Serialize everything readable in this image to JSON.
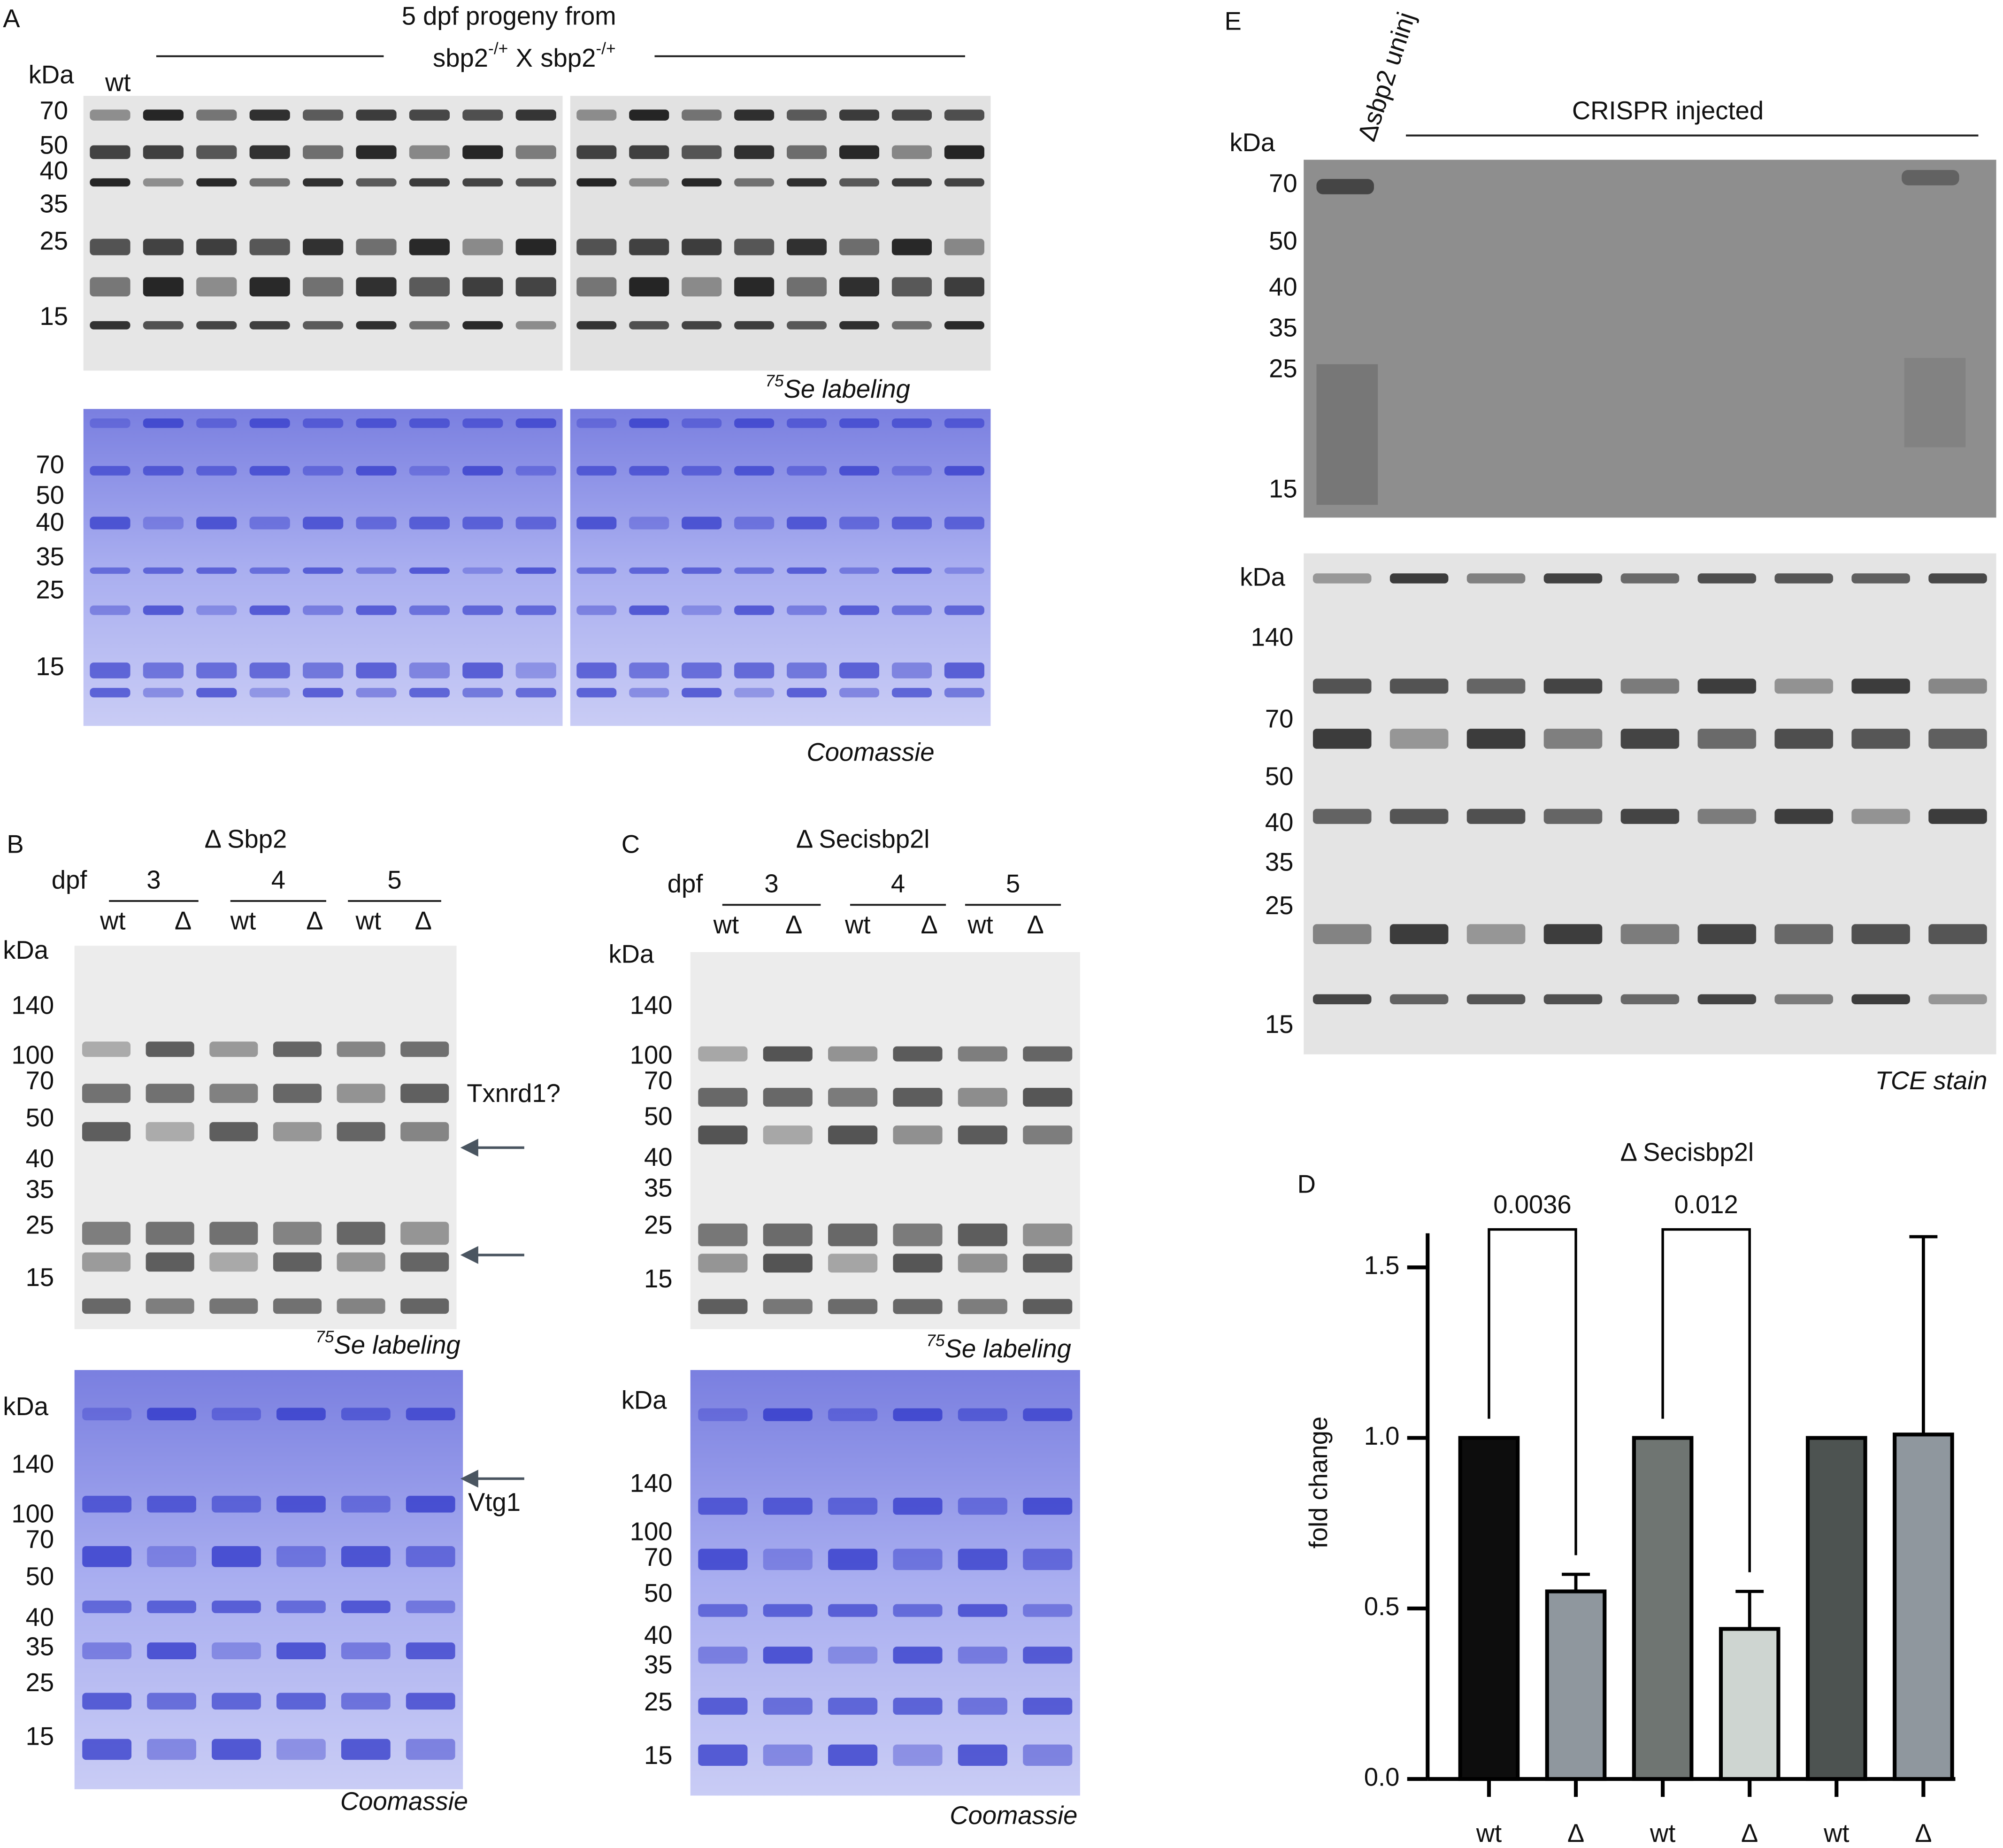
{
  "panel_a": {
    "letter": "A",
    "title": "5 dpf progeny from",
    "cross": [
      "sbp2",
      "-/+",
      "X",
      "sbp2",
      "-/+"
    ],
    "kda": "kDa",
    "lane": "wt",
    "markers_top": [
      "70",
      "50",
      "40",
      "35",
      "25",
      "15"
    ],
    "markers_bottom": [
      "70",
      "50",
      "40",
      "35",
      "25",
      "15"
    ],
    "label_top": {
      "isotope": "75",
      "text": "Se labeling"
    },
    "label_bottom": "Coomassie"
  },
  "panel_b": {
    "letter": "B",
    "title": "Δ Sbp2",
    "dpf": "dpf",
    "days": [
      "3",
      "4",
      "5"
    ],
    "lanes": [
      "wt",
      "Δ",
      "wt",
      "Δ",
      "wt",
      "Δ"
    ],
    "kda_top": "kDa",
    "kda_bottom": "kDa",
    "markers_top": [
      "140",
      "100",
      "70",
      "50",
      "40",
      "35",
      "25",
      "15"
    ],
    "markers_bottom": [
      "140",
      "100",
      "70",
      "50",
      "40",
      "35",
      "25",
      "15"
    ],
    "annotations": [
      "Txnrd1?",
      "Vtg1"
    ],
    "label_top": {
      "isotope": "75",
      "text": "Se labeling"
    },
    "label_bottom": "Coomassie"
  },
  "panel_c": {
    "letter": "C",
    "title": "Δ Secisbp2l",
    "dpf": "dpf",
    "days": [
      "3",
      "4",
      "5"
    ],
    "lanes": [
      "wt",
      "Δ",
      "wt",
      "Δ",
      "wt",
      "Δ"
    ],
    "kda_top": "kDa",
    "kda_bottom": "kDa",
    "markers_top": [
      "140",
      "100",
      "70",
      "50",
      "40",
      "35",
      "25",
      "15"
    ],
    "markers_bottom": [
      "140",
      "100",
      "70",
      "50",
      "40",
      "35",
      "25",
      "15"
    ],
    "label_top": {
      "isotope": "75",
      "text": "Se labeling"
    },
    "label_bottom": "Coomassie"
  },
  "panel_e": {
    "letter": "E",
    "lane": "Δsbp2 uninj",
    "group": "CRISPR injected",
    "kda_top": "kDa",
    "kda_bottom": "kDa",
    "markers_top": [
      "70",
      "50",
      "40",
      "35",
      "25",
      "15"
    ],
    "markers_bottom": [
      "140",
      "70",
      "50",
      "40",
      "35",
      "25",
      "15"
    ],
    "label_bottom": "TCE stain"
  },
  "panel_d": {
    "letter": "D"
  },
  "chart_data": {
    "type": "bar",
    "title": "Δ Secisbp2l",
    "y_label": "fold change",
    "categories": [
      "wt",
      "Δ",
      "wt",
      "Δ",
      "wt",
      "Δ"
    ],
    "values": [
      1.0,
      0.55,
      1.0,
      0.44,
      1.0,
      1.01
    ],
    "errors": [
      null,
      0.05,
      null,
      0.11,
      null,
      0.58
    ],
    "colors": [
      "#0d0d0d",
      "#8f979e",
      "#6f7572",
      "#ced5d1",
      "#4d5351",
      "#8f979e"
    ],
    "annotations": [
      "0.0036",
      "0.012"
    ],
    "ylim": [
      0,
      1.6
    ],
    "yticks": [
      {
        "value": 0,
        "label": "0.0"
      },
      0.5,
      {
        "value": 1,
        "label": "1.0"
      },
      1.5
    ]
  }
}
